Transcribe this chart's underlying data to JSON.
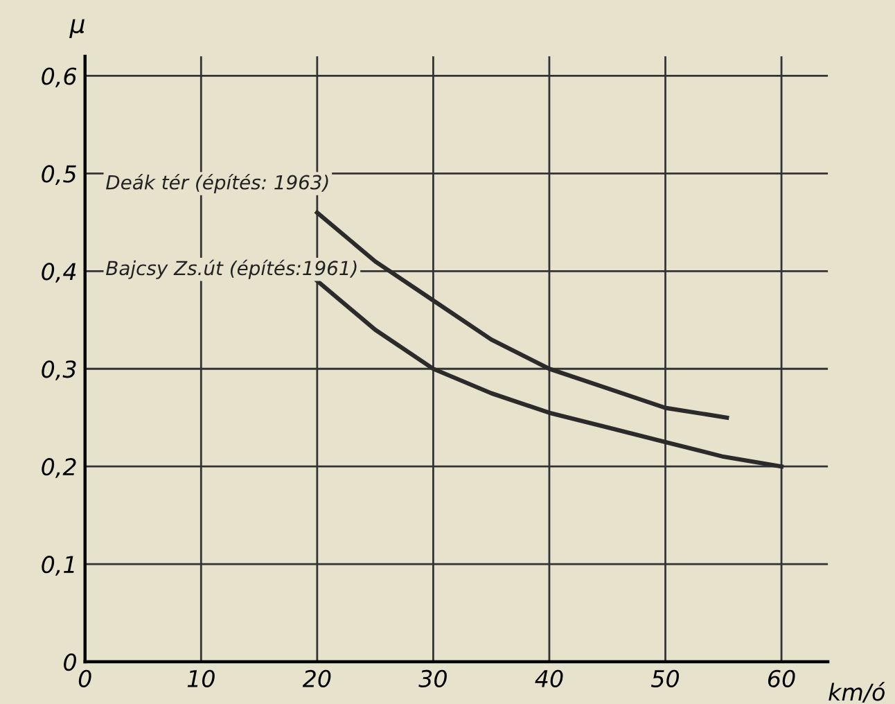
{
  "chart_data": {
    "type": "line",
    "xlabel": "km/ó",
    "ylabel": "μ",
    "series": [
      {
        "name": "Deák tér (építés: 1963)",
        "color": "#2b2b2b",
        "x": [
          20,
          25,
          30,
          35,
          40,
          45,
          50,
          55.3
        ],
        "values": [
          0.46,
          0.41,
          0.37,
          0.33,
          0.3,
          0.28,
          0.26,
          0.25
        ]
      },
      {
        "name": "Bajcsy Zs.út (építés:1961)",
        "color": "#2b2b2b",
        "x": [
          20,
          25,
          30,
          35,
          40,
          45,
          50,
          55,
          60
        ],
        "values": [
          0.39,
          0.34,
          0.3,
          0.275,
          0.255,
          0.24,
          0.225,
          0.21,
          0.2
        ]
      }
    ],
    "xlim": [
      0,
      64
    ],
    "ylim": [
      0,
      0.62
    ],
    "xticks": [
      0,
      10,
      20,
      30,
      40,
      50,
      60
    ],
    "yticks": [
      {
        "value": 0,
        "label": "0"
      },
      {
        "value": 0.1,
        "label": "0,1"
      },
      {
        "value": 0.2,
        "label": "0,2"
      },
      {
        "value": 0.3,
        "label": "0,3"
      },
      {
        "value": 0.4,
        "label": "0,4"
      },
      {
        "value": 0.5,
        "label": "0,5"
      },
      {
        "value": 0.6,
        "label": "0,6"
      }
    ],
    "grid": true,
    "marker": "none",
    "line_style": "solid"
  }
}
